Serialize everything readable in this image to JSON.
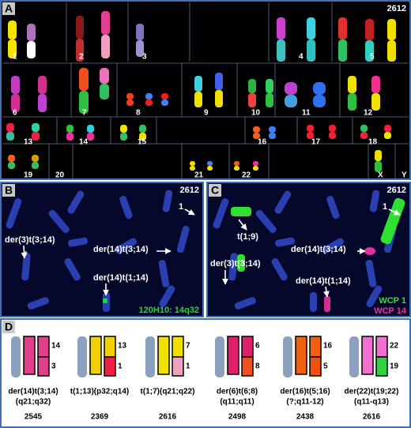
{
  "panel_a": {
    "label": "A",
    "sample": "2612",
    "chromosome_labels": [
      "1",
      "2",
      "3",
      "4",
      "5",
      "6",
      "7",
      "8",
      "9",
      "10",
      "11",
      "12",
      "13",
      "14",
      "15",
      "16",
      "17",
      "18",
      "19",
      "20",
      "21",
      "22",
      "X",
      "Y"
    ]
  },
  "panel_b": {
    "label": "B",
    "sample": "2612",
    "annotations": [
      "1",
      "der(3)t(3;14)",
      "der(14)t(3;14)",
      "der(14)t(1;14)"
    ],
    "probe": "120H10: 14q32"
  },
  "panel_c": {
    "label": "C",
    "sample": "2612",
    "annotations": [
      "1",
      "t(1;9)",
      "der(3)t(3;14)",
      "der(14)t(3;14)",
      "der(14)t(1;14)"
    ],
    "legend": [
      "WCP 1",
      "WCP 14"
    ]
  },
  "panel_d": {
    "label": "D",
    "items": [
      {
        "numbers": [
          "14",
          "3"
        ],
        "lines": [
          "der(14)t(3;14)",
          "(q21;q32)"
        ],
        "case": "2545"
      },
      {
        "numbers": [
          "13",
          "1"
        ],
        "lines": [
          "t(1;13)(p32;q14)"
        ],
        "case": "2369"
      },
      {
        "numbers": [
          "7",
          "1"
        ],
        "lines": [
          "t(1;7)(q21;q22)"
        ],
        "case": "2616"
      },
      {
        "numbers": [
          "6",
          "8"
        ],
        "lines": [
          "der(6)t(6;8)",
          "(q11;q11)"
        ],
        "case": "2498"
      },
      {
        "numbers": [
          "16",
          "5"
        ],
        "lines": [
          "der(16)t(5;16)",
          "(?;q11-12)"
        ],
        "case": "2438"
      },
      {
        "numbers": [
          "22",
          "19"
        ],
        "lines": [
          "der(22)t(19;22)",
          "(q11-q13)"
        ],
        "case": "2616"
      }
    ]
  }
}
